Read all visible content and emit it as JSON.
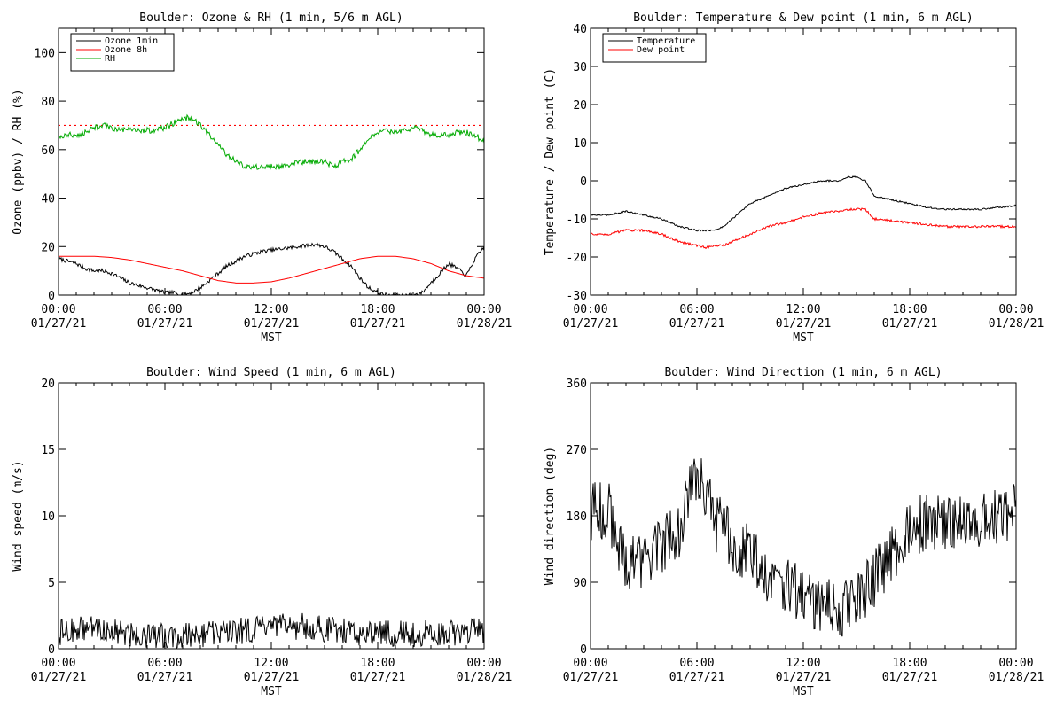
{
  "chart_data": [
    {
      "type": "line",
      "title": "Boulder: Ozone & RH (1 min, 5/6 m AGL)",
      "xlabel": "MST",
      "ylabel": "Ozone (ppbv) / RH (%)",
      "xlim": [
        0,
        24
      ],
      "ylim": [
        0,
        110
      ],
      "yticks": [
        0,
        20,
        40,
        60,
        80,
        100
      ],
      "xticks": [
        0,
        6,
        12,
        18,
        24
      ],
      "xtick_labels": [
        [
          "00:00",
          "01/27/21"
        ],
        [
          "06:00",
          "01/27/21"
        ],
        [
          "12:00",
          "01/27/21"
        ],
        [
          "18:00",
          "01/27/21"
        ],
        [
          "00:00",
          "01/28/21"
        ]
      ],
      "legend_position": "top-left",
      "reference_lines": [
        {
          "y": 70,
          "color": "#ff0000",
          "style": "dotted"
        }
      ],
      "series": [
        {
          "name": "Ozone 1min",
          "color": "#000000",
          "noise": 0.8,
          "x": [
            0,
            0.5,
            1,
            1.5,
            2,
            2.5,
            3,
            3.5,
            4,
            4.5,
            5,
            5.5,
            6,
            6.5,
            7,
            7.5,
            8,
            8.5,
            9,
            9.5,
            10,
            10.5,
            11,
            11.5,
            12,
            12.5,
            13,
            13.5,
            14,
            14.5,
            15,
            15.5,
            16,
            16.5,
            17,
            17.5,
            18,
            18.5,
            19,
            19.5,
            20,
            20.5,
            21,
            21.5,
            22,
            22.5,
            23,
            23.5,
            24
          ],
          "y": [
            15,
            14,
            13,
            11,
            10,
            10,
            9,
            7,
            5,
            4,
            3,
            2,
            1,
            1,
            0,
            1,
            3,
            6,
            9,
            12,
            14,
            16,
            17,
            18,
            18.5,
            19,
            19.5,
            20,
            20.5,
            21,
            20,
            18,
            15,
            12,
            7,
            3,
            1,
            0,
            0,
            0,
            0,
            1,
            5,
            9,
            13,
            11,
            8,
            15,
            20
          ]
        },
        {
          "name": "Ozone 8h",
          "color": "#ff0000",
          "noise": 0,
          "x": [
            0,
            1,
            2,
            3,
            4,
            5,
            6,
            7,
            8,
            9,
            10,
            11,
            12,
            13,
            14,
            15,
            16,
            17,
            18,
            19,
            20,
            21,
            22,
            23,
            24
          ],
          "y": [
            16,
            16,
            16,
            15.5,
            14.5,
            13,
            11.5,
            10,
            8,
            6,
            5,
            5,
            5.5,
            7,
            9,
            11,
            13,
            15,
            16,
            16,
            15,
            13,
            10,
            8,
            7
          ]
        },
        {
          "name": "RH",
          "color": "#00aa00",
          "noise": 1.2,
          "x": [
            0,
            0.5,
            1,
            1.5,
            2,
            2.5,
            3,
            3.5,
            4,
            4.5,
            5,
            5.5,
            6,
            6.5,
            7,
            7.5,
            8,
            8.5,
            9,
            9.5,
            10,
            10.5,
            11,
            11.5,
            12,
            12.5,
            13,
            13.5,
            14,
            14.5,
            15,
            15.5,
            16,
            16.5,
            17,
            17.5,
            18,
            18.5,
            19,
            19.5,
            20,
            20.5,
            21,
            21.5,
            22,
            22.5,
            23,
            23.5,
            24
          ],
          "y": [
            65,
            66,
            66,
            67,
            69,
            70,
            69,
            68,
            68,
            68,
            68,
            68,
            69,
            71,
            73,
            73,
            70,
            66,
            62,
            58,
            55,
            53,
            53,
            53,
            53,
            53,
            54,
            55,
            55,
            55,
            55,
            53,
            55,
            56,
            60,
            65,
            67,
            68,
            67,
            68,
            69,
            68,
            66,
            66,
            66,
            67,
            67,
            66,
            63
          ]
        }
      ]
    },
    {
      "type": "line",
      "title": "Boulder: Temperature & Dew point (1 min, 6 m AGL)",
      "xlabel": "MST",
      "ylabel": "Temperature / Dew point (C)",
      "xlim": [
        0,
        24
      ],
      "ylim": [
        -30,
        40
      ],
      "yticks": [
        -30,
        -20,
        -10,
        0,
        10,
        20,
        30,
        40
      ],
      "xticks": [
        0,
        6,
        12,
        18,
        24
      ],
      "xtick_labels": [
        [
          "00:00",
          "01/27/21"
        ],
        [
          "06:00",
          "01/27/21"
        ],
        [
          "12:00",
          "01/27/21"
        ],
        [
          "18:00",
          "01/27/21"
        ],
        [
          "00:00",
          "01/28/21"
        ]
      ],
      "legend_position": "top-left",
      "series": [
        {
          "name": "Temperature",
          "color": "#000000",
          "noise": 0.2,
          "x": [
            0,
            1,
            2,
            3,
            4,
            5,
            6,
            6.5,
            7,
            7.5,
            8,
            9,
            10,
            11,
            12,
            13,
            14,
            14.5,
            15,
            15.5,
            16,
            17,
            18,
            19,
            20,
            21,
            22,
            23,
            24
          ],
          "y": [
            -9,
            -9,
            -8,
            -9,
            -10,
            -12,
            -13,
            -13,
            -13,
            -12,
            -10,
            -6,
            -4,
            -2,
            -1,
            0,
            0,
            1,
            1,
            0,
            -4,
            -5,
            -6,
            -7,
            -7.5,
            -7.5,
            -7.5,
            -7,
            -6.5
          ]
        },
        {
          "name": "Dew point",
          "color": "#ff0000",
          "noise": 0.3,
          "x": [
            0,
            1,
            2,
            3,
            4,
            5,
            6,
            6.5,
            7,
            7.5,
            8,
            9,
            10,
            11,
            12,
            13,
            14,
            14.5,
            15,
            15.5,
            16,
            17,
            18,
            19,
            20,
            21,
            22,
            23,
            24
          ],
          "y": [
            -14,
            -14,
            -13,
            -13,
            -14,
            -16,
            -17,
            -17.5,
            -17,
            -17,
            -16,
            -14,
            -12,
            -11,
            -9.5,
            -8.5,
            -8,
            -7.5,
            -7.5,
            -7.5,
            -10,
            -10.5,
            -11,
            -11.5,
            -12,
            -12,
            -12,
            -12,
            -12
          ]
        }
      ]
    },
    {
      "type": "line",
      "title": "Boulder: Wind Speed (1 min, 6 m AGL)",
      "xlabel": "MST",
      "ylabel": "Wind speed (m/s)",
      "xlim": [
        0,
        24
      ],
      "ylim": [
        0,
        20
      ],
      "yticks": [
        0,
        5,
        10,
        15,
        20
      ],
      "xticks": [
        0,
        6,
        12,
        18,
        24
      ],
      "xtick_labels": [
        [
          "00:00",
          "01/27/21"
        ],
        [
          "06:00",
          "01/27/21"
        ],
        [
          "12:00",
          "01/27/21"
        ],
        [
          "18:00",
          "01/27/21"
        ],
        [
          "00:00",
          "01/28/21"
        ]
      ],
      "series": [
        {
          "color": "#000000",
          "noise": 1.0,
          "min": 0,
          "x": [
            0,
            2,
            4,
            6,
            8,
            10,
            12,
            14,
            16,
            18,
            20,
            22,
            24
          ],
          "y": [
            1.2,
            1.6,
            1.1,
            0.9,
            1.1,
            1.3,
            1.6,
            1.7,
            1.3,
            1.2,
            1.1,
            1.2,
            1.4
          ]
        }
      ]
    },
    {
      "type": "line",
      "title": "Boulder: Wind Direction (1 min, 6 m AGL)",
      "xlabel": "MST",
      "ylabel": "Wind direction (deg)",
      "xlim": [
        0,
        24
      ],
      "ylim": [
        0,
        360
      ],
      "yticks": [
        0,
        90,
        180,
        270,
        360
      ],
      "xticks": [
        0,
        6,
        12,
        18,
        24
      ],
      "xtick_labels": [
        [
          "00:00",
          "01/27/21"
        ],
        [
          "06:00",
          "01/27/21"
        ],
        [
          "12:00",
          "01/27/21"
        ],
        [
          "18:00",
          "01/27/21"
        ],
        [
          "00:00",
          "01/28/21"
        ]
      ],
      "series": [
        {
          "color": "#000000",
          "noise": 40,
          "min": 0,
          "max": 360,
          "x": [
            0,
            1,
            2,
            3,
            4,
            5,
            5.5,
            6,
            6.5,
            7,
            7.5,
            8,
            9,
            10,
            11,
            12,
            13,
            14,
            15,
            16,
            17,
            18,
            19,
            20,
            21,
            22,
            23,
            24
          ],
          "y": [
            185,
            190,
            110,
            120,
            140,
            160,
            200,
            240,
            210,
            170,
            170,
            140,
            130,
            100,
            85,
            70,
            60,
            55,
            60,
            95,
            130,
            160,
            175,
            170,
            170,
            175,
            180,
            185
          ]
        }
      ]
    }
  ]
}
